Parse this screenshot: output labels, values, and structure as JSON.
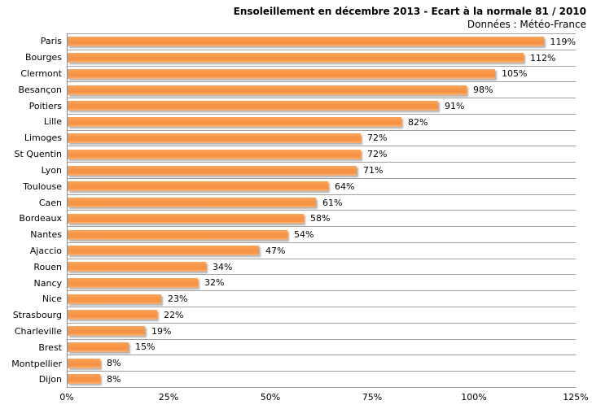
{
  "header": {
    "title": "Ensoleillement en décembre 2013 - Ecart à la normale 81 / 2010",
    "subtitle": "Données : Météo-France"
  },
  "colors": {
    "bar": "#F79646",
    "bar_shadow": "#6E6E6E",
    "gridline": "#A3A3A3",
    "axis_line": "#8C8C8C",
    "text": "#000000"
  },
  "chart_data": {
    "type": "bar",
    "orientation": "horizontal",
    "title": "Ensoleillement en décembre 2013 - Ecart à la normale 81 / 2010",
    "subtitle": "Données : Météo-France",
    "categories": [
      "Paris",
      "Bourges",
      "Clermont",
      "Besançon",
      "Poitiers",
      "Lille",
      "Limoges",
      "St Quentin",
      "Lyon",
      "Toulouse",
      "Caen",
      "Bordeaux",
      "Nantes",
      "Ajaccio",
      "Rouen",
      "Nancy",
      "Nice",
      "Strasbourg",
      "Charleville",
      "Brest",
      "Montpellier",
      "Dijon"
    ],
    "values": [
      119,
      112,
      105,
      98,
      91,
      82,
      72,
      72,
      71,
      64,
      61,
      58,
      54,
      47,
      34,
      32,
      23,
      22,
      19,
      15,
      8,
      8
    ],
    "value_labels": [
      "119%",
      "112%",
      "105%",
      "98%",
      "91%",
      "82%",
      "72%",
      "72%",
      "71%",
      "64%",
      "61%",
      "58%",
      "54%",
      "47%",
      "34%",
      "32%",
      "23%",
      "22%",
      "19%",
      "15%",
      "8%",
      "8%"
    ],
    "unit": "%",
    "xlim": [
      0,
      125
    ],
    "x_ticks": [
      "0%",
      "25%",
      "50%",
      "75%",
      "100%",
      "125%"
    ],
    "x_tick_values": [
      0,
      25,
      50,
      75,
      100,
      125
    ],
    "grid": "horizontal category gridlines only",
    "legend": "none",
    "data_labels": "outside end of each bar"
  }
}
